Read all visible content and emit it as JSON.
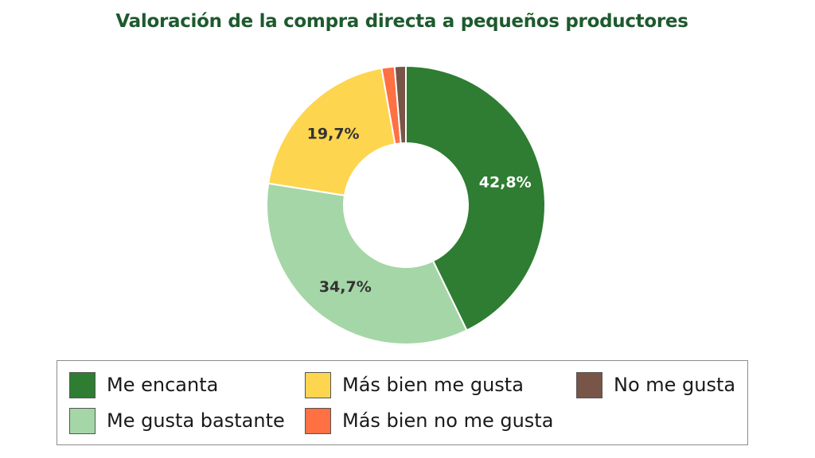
{
  "chart_data": {
    "type": "pie",
    "variant": "donut",
    "title": "Valoración de la compra directa a pequeños productores",
    "categories": [
      "Me encanta",
      "Me gusta bastante",
      "Más bien me gusta",
      "Más bien no me gusta",
      "No me gusta"
    ],
    "values": [
      42.8,
      34.7,
      19.7,
      1.5,
      1.3
    ],
    "data_labels": [
      "42,8%",
      "34,7%",
      "19,7%",
      "",
      ""
    ],
    "colors": [
      "#2e7d32",
      "#a5d6a7",
      "#fdd54f",
      "#ff7043",
      "#795548"
    ],
    "label_colors": [
      "#ffffff",
      "#333333",
      "#333333",
      "#333333",
      "#333333"
    ],
    "legend_position": "bottom"
  }
}
